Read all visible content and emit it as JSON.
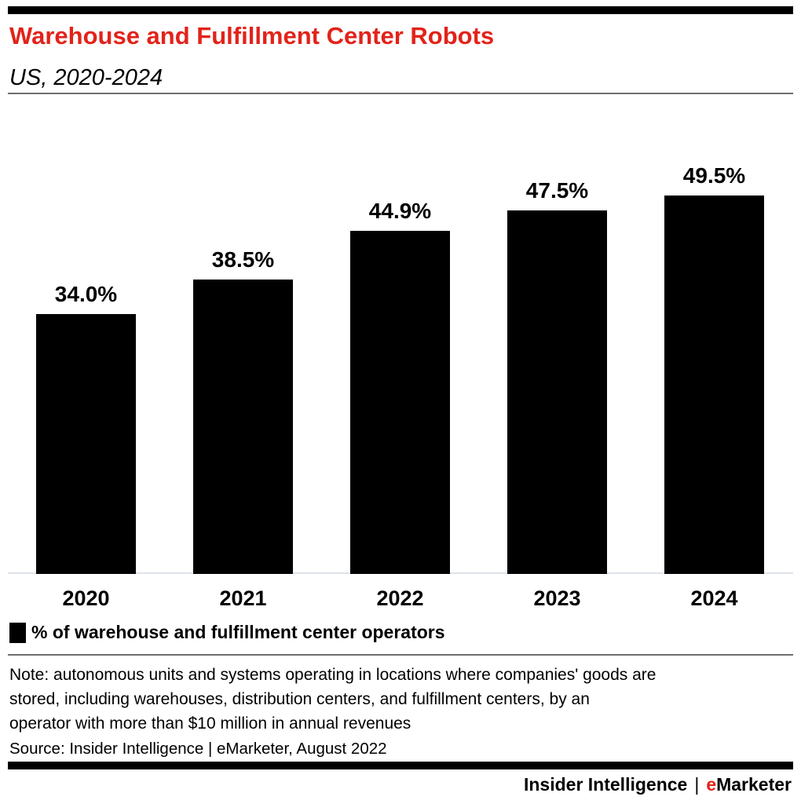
{
  "header": {
    "title": "Warehouse and Fulfillment Center Robots",
    "subtitle": "US, 2020-2024"
  },
  "chart_data": {
    "type": "bar",
    "categories": [
      "2020",
      "2021",
      "2022",
      "2023",
      "2024"
    ],
    "values": [
      34.0,
      38.5,
      44.9,
      47.5,
      49.5
    ],
    "value_labels": [
      "34.0%",
      "38.5%",
      "44.9%",
      "47.5%",
      "49.5%"
    ],
    "title": "Warehouse and Fulfillment Center Robots",
    "subtitle": "US, 2020-2024",
    "xlabel": "",
    "ylabel": "",
    "ylim": [
      0,
      51.5
    ],
    "grid": false,
    "legend": "% of warehouse and fulfillment center operators",
    "legend_position": "bottom-left",
    "bar_color": "#000000"
  },
  "footnote": {
    "note": "Note: autonomous units and systems operating in locations where companies' goods are\nstored, including warehouses, distribution centers, and fulfillment centers, by an\noperator with more than $10 million in annual revenues",
    "source": "Source: Insider Intelligence | eMarketer, August 2022"
  },
  "footer": {
    "brand_left": "Insider Intelligence",
    "separator": "|",
    "brand_e": "e",
    "brand_rest": "Marketer"
  },
  "colors": {
    "accent_red": "#e2231a",
    "bar": "#000000",
    "divider_gray": "#6e6e6e",
    "axis_line": "#dde3ea"
  }
}
